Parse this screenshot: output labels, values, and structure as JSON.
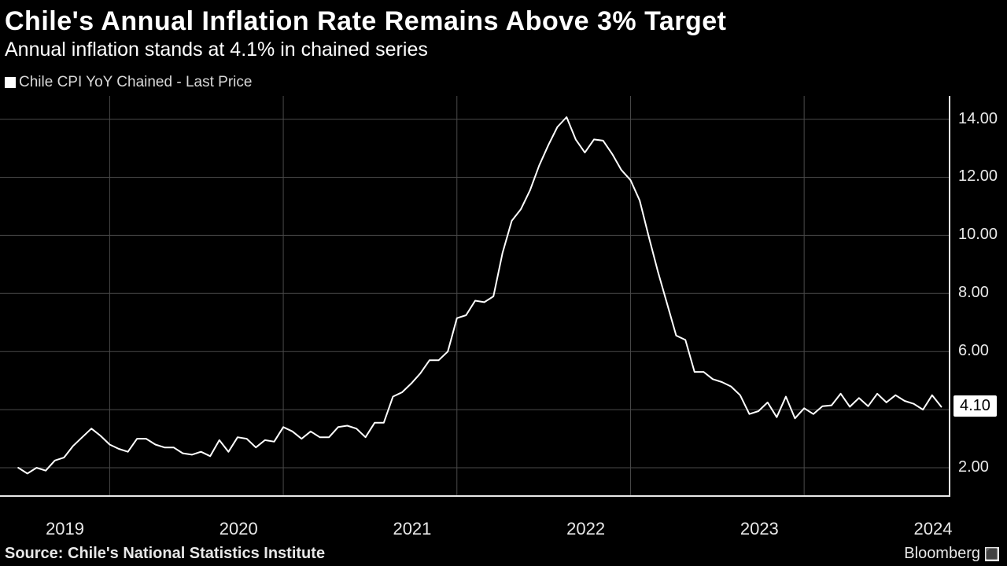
{
  "title": "Chile's Annual Inflation Rate Remains Above 3% Target",
  "subtitle": "Annual inflation stands at 4.1% in chained series",
  "legend_label": "Chile CPI YoY Chained - Last Price",
  "source": "Source: Chile's National Statistics Institute",
  "brand": "Bloomberg",
  "chart": {
    "type": "line",
    "background_color": "#000000",
    "line_color": "#ffffff",
    "line_width": 2,
    "grid_color": "#4a4a4a",
    "axis_color": "#e8e8e8",
    "text_color": "#e8e8e8",
    "title_fontsize": 34,
    "subtitle_fontsize": 25,
    "label_fontsize": 20,
    "xtick_labels": [
      "2019",
      "2020",
      "2021",
      "2022",
      "2023",
      "2024"
    ],
    "xtick_positions": [
      3,
      22,
      41,
      60,
      79,
      98
    ],
    "x_gridlines": [
      10,
      29,
      48,
      67,
      86,
      102
    ],
    "x_range": [
      -2,
      102
    ],
    "ytick_labels": [
      "2.00",
      "4.00",
      "6.00",
      "8.00",
      "10.00",
      "12.00",
      "14.00"
    ],
    "ytick_values": [
      2,
      4,
      6,
      8,
      10,
      12,
      14
    ],
    "ylim": [
      1.0,
      14.8
    ],
    "last_value_label": "4.10",
    "last_value": 4.1,
    "x": [
      0,
      1,
      2,
      3,
      4,
      5,
      6,
      7,
      8,
      9,
      10,
      11,
      12,
      13,
      14,
      15,
      16,
      17,
      18,
      19,
      20,
      21,
      22,
      23,
      24,
      25,
      26,
      27,
      28,
      29,
      30,
      31,
      32,
      33,
      34,
      35,
      36,
      37,
      38,
      39,
      40,
      41,
      42,
      43,
      44,
      45,
      46,
      47,
      48,
      49,
      50,
      51,
      52,
      53,
      54,
      55,
      56,
      57,
      58,
      59,
      60,
      61,
      62,
      63,
      64,
      65,
      66,
      67,
      68,
      69,
      70,
      71,
      72,
      73,
      74,
      75,
      76,
      77,
      78,
      79,
      80,
      81,
      82,
      83,
      84,
      85,
      86,
      87,
      88,
      89,
      90,
      91,
      92,
      93,
      94,
      95,
      96,
      97,
      98,
      99,
      100,
      101
    ],
    "y": [
      2.0,
      1.8,
      2.0,
      1.9,
      2.25,
      2.35,
      2.75,
      3.05,
      3.35,
      3.1,
      2.8,
      2.65,
      2.55,
      3.0,
      3.0,
      2.8,
      2.7,
      2.7,
      2.5,
      2.45,
      2.55,
      2.4,
      2.95,
      2.55,
      3.05,
      3.0,
      2.7,
      2.95,
      2.9,
      3.4,
      3.25,
      3.0,
      3.25,
      3.05,
      3.05,
      3.4,
      3.45,
      3.35,
      3.05,
      3.55,
      3.55,
      4.45,
      4.6,
      4.9,
      5.25,
      5.7,
      5.7,
      6.0,
      7.15,
      7.25,
      7.75,
      7.7,
      7.9,
      9.4,
      10.5,
      10.9,
      11.55,
      12.4,
      13.1,
      13.73,
      14.07,
      13.3,
      12.85,
      13.3,
      13.26,
      12.8,
      12.25,
      11.9,
      11.2,
      9.95,
      8.75,
      7.65,
      6.55,
      6.4,
      5.3,
      5.3,
      5.05,
      4.95,
      4.8,
      4.5,
      3.85,
      3.95,
      4.25,
      3.74,
      4.45,
      3.7,
      4.05,
      3.85,
      4.12,
      4.15,
      4.55,
      4.1,
      4.4,
      4.12,
      4.55,
      4.25,
      4.5,
      4.3,
      4.2,
      4.0,
      4.5,
      4.1
    ]
  }
}
